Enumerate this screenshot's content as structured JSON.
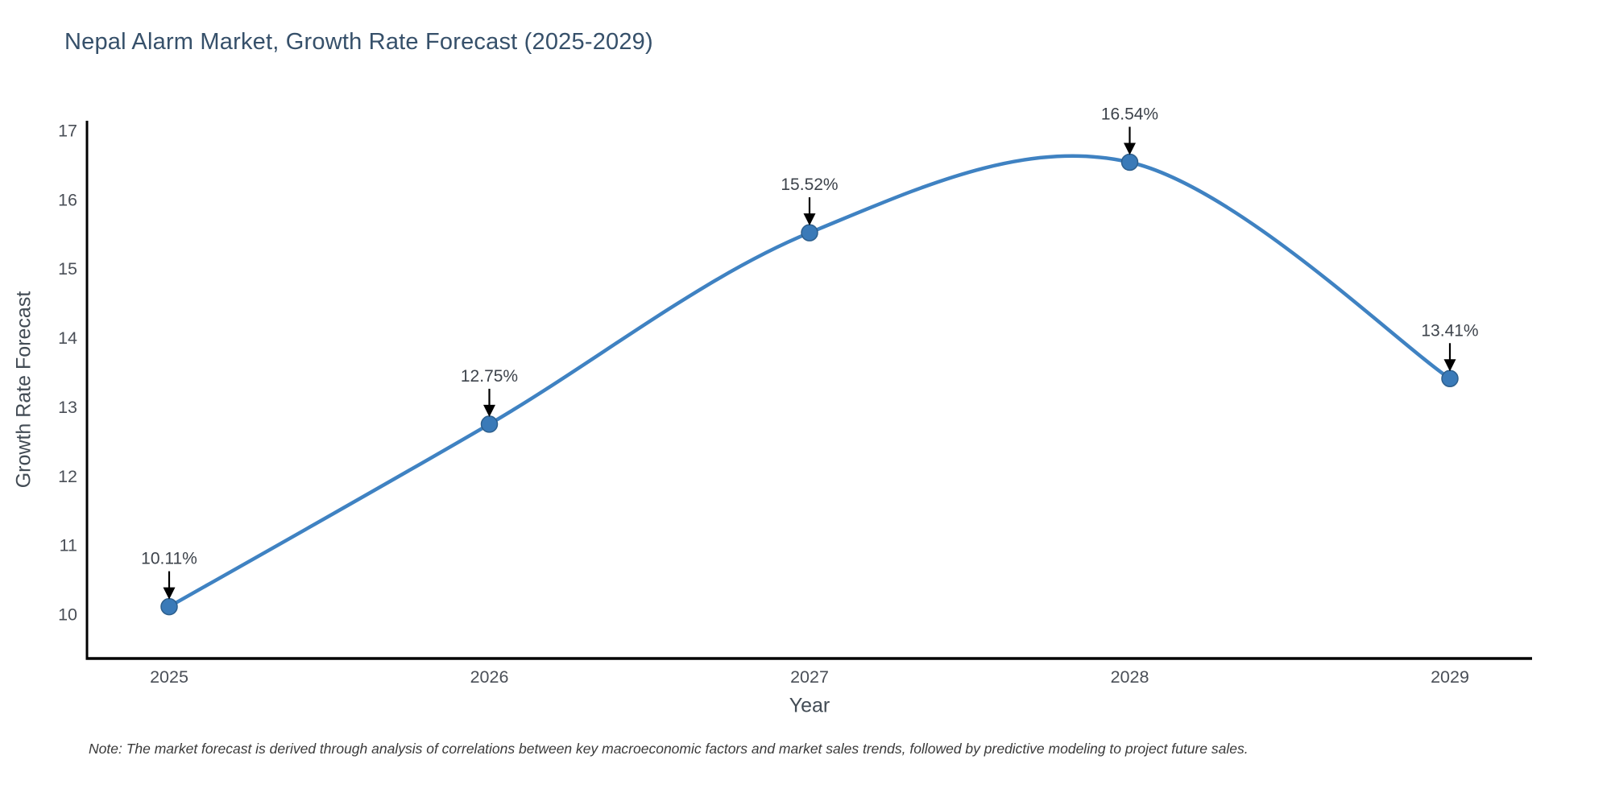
{
  "header": {
    "title": "Nepal Alarm Market, Growth Rate Forecast (2025-2029)"
  },
  "footer": {
    "note": "Note: The market forecast is derived through analysis of correlations between key macroeconomic factors and market sales trends, followed by predictive modeling to project future sales."
  },
  "chart_data": {
    "type": "line",
    "line_shape": "spline",
    "title": "Nepal Alarm Market, Growth Rate Forecast (2025-2029)",
    "xlabel": "Year",
    "ylabel": "Growth Rate Forecast",
    "categories": [
      "2025",
      "2026",
      "2027",
      "2028",
      "2029"
    ],
    "series": [
      {
        "name": "Growth Rate Forecast",
        "values": [
          10.11,
          12.75,
          15.52,
          16.54,
          13.41
        ],
        "point_labels": [
          "10.11%",
          "12.75%",
          "15.52%",
          "16.54%",
          "13.41%"
        ]
      }
    ],
    "yticks": [
      10,
      11,
      12,
      13,
      14,
      15,
      16,
      17
    ],
    "ylim": [
      9.36,
      17.14
    ],
    "grid": false,
    "legend_position": "none",
    "annotation_style": "label-with-down-arrow",
    "colors": {
      "line": "#3f82c2",
      "marker_fill": "#3a7ab8",
      "marker_edge": "#2d5f8d",
      "axis": "#000000",
      "annotation_arrow": "#000000",
      "title_text": "#36506a",
      "tick_text": "#4a4f57",
      "axis_label_text": "#424b54",
      "note_text": "#3a3a3a",
      "background": "#ffffff"
    }
  }
}
